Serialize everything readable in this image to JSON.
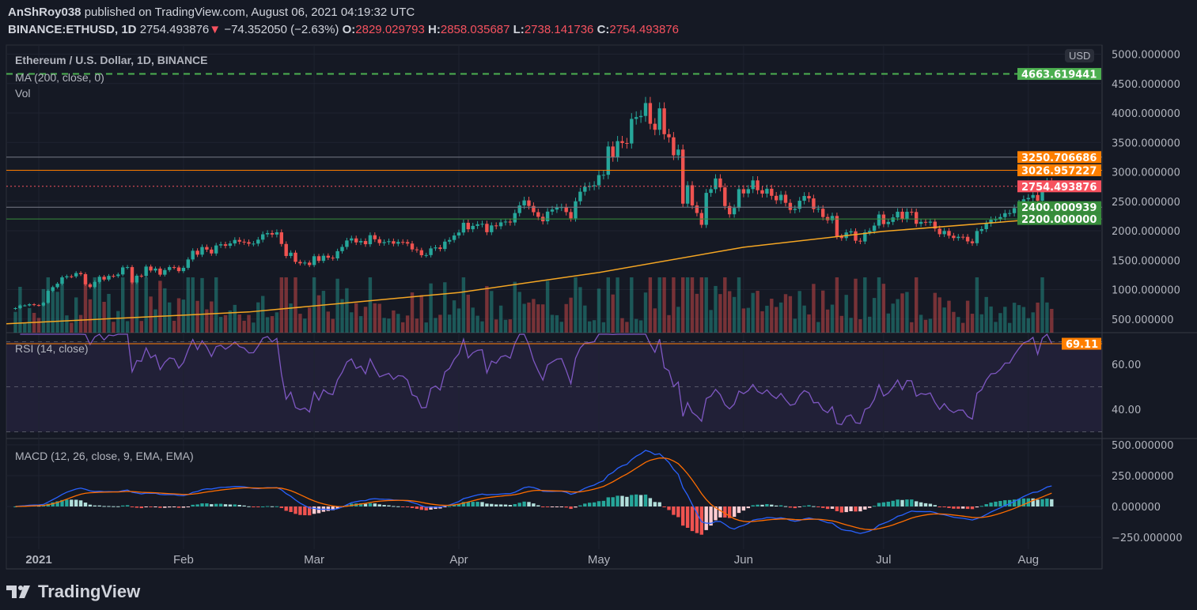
{
  "header": {
    "author": "AnShRoy038",
    "published": " published on TradingView.com, August 06, 2021 04:19:32 UTC",
    "symbol": "BINANCE:ETHUSD, 1D",
    "last": "2754.493876",
    "change": "−74.352050 (−2.63%)",
    "o_label": "O:",
    "o": "2829.029793",
    "h_label": "H:",
    "h": "2858.035687",
    "l_label": "L:",
    "l": "2738.141736",
    "c_label": "C:",
    "c": "2754.493876",
    "down_icon": "triangle-down-icon"
  },
  "legend": {
    "title": "Ethereum / U.S. Dollar, 1D, BINANCE",
    "ma": "MA (200, close, 0)",
    "vol": "Vol",
    "rsi": "RSI (14, close)",
    "macd": "MACD (12, 26, close, 9, EMA, EMA)"
  },
  "currency": "USD",
  "logo": "TradingView",
  "colors": {
    "up": "#26a69a",
    "down": "#ef5350",
    "ma": "#f5a623",
    "rsi": "#7e57c2",
    "macd": "#2962ff",
    "signal": "#ff6d00",
    "background": "#151924"
  },
  "chart_data": {
    "type": "candlestick",
    "symbol": "ETHUSD",
    "candles_from": "2020-12-27",
    "closes": [
      685,
      730,
      731,
      751,
      737,
      730,
      775,
      979,
      1041,
      1100,
      1208,
      1225,
      1224,
      1281,
      1262,
      1090,
      1043,
      1130,
      1218,
      1171,
      1233,
      1230,
      1257,
      1377,
      1382,
      1121,
      1236,
      1231,
      1391,
      1324,
      1357,
      1253,
      1332,
      1382,
      1376,
      1314,
      1370,
      1512,
      1660,
      1593,
      1723,
      1680,
      1614,
      1750,
      1770,
      1744,
      1784,
      1843,
      1814,
      1806,
      1779,
      1781,
      1848,
      1939,
      1960,
      1935,
      1973,
      1775,
      1571,
      1627,
      1471,
      1446,
      1458,
      1417,
      1567,
      1488,
      1575,
      1542,
      1530,
      1653,
      1725,
      1834,
      1870,
      1802,
      1825,
      1771,
      1924,
      1855,
      1790,
      1807,
      1822,
      1780,
      1810,
      1807,
      1782,
      1683,
      1669,
      1584,
      1586,
      1700,
      1716,
      1690,
      1815,
      1843,
      1919,
      1970,
      2135,
      2025,
      2082,
      2110,
      2117,
      1975,
      2090,
      2076,
      2142,
      2155,
      2140,
      2300,
      2430,
      2515,
      2421,
      2315,
      2236,
      2160,
      2325,
      2360,
      2394,
      2400,
      2317,
      2210,
      2500,
      2663,
      2748,
      2757,
      2772,
      2945,
      2950,
      3431,
      3253,
      3522,
      3490,
      3482,
      3900,
      3930,
      3950,
      4169,
      3817,
      3715,
      4079,
      3640,
      3587,
      3282,
      3379,
      2460,
      2772,
      2430,
      2301,
      2100,
      2643,
      2706,
      2888,
      2736,
      2419,
      2279,
      2387,
      2706,
      2634,
      2707,
      2855,
      2688,
      2630,
      2713,
      2593,
      2517,
      2611,
      2474,
      2353,
      2372,
      2510,
      2590,
      2549,
      2368,
      2373,
      2233,
      2178,
      2251,
      1900,
      1875,
      1971,
      1990,
      1830,
      1817,
      1973,
      1996,
      2087,
      2275,
      2113,
      2150,
      2226,
      2323,
      2198,
      2322,
      2318,
      2118,
      2150,
      2137,
      2154,
      2036,
      1941,
      1996,
      1915,
      1876,
      1897,
      1896,
      1819,
      1788,
      1995,
      2027,
      2123,
      2187,
      2192,
      2232,
      2298,
      2299,
      2384,
      2462,
      2534,
      2557,
      2607,
      2510,
      2725,
      2827,
      2754
    ],
    "ma200": [
      [
        "2020-12-27",
        420
      ],
      [
        "2021-02-15",
        620
      ],
      [
        "2021-04-01",
        950
      ],
      [
        "2021-05-01",
        1290
      ],
      [
        "2021-06-01",
        1720
      ],
      [
        "2021-07-01",
        1990
      ],
      [
        "2021-08-06",
        2215
      ]
    ],
    "price_axis": {
      "ticks": [
        "5000.000000",
        "4500.000000",
        "4000.000000",
        "3500.000000",
        "3000.000000",
        "2500.000000",
        "2000.000000",
        "1500.000000",
        "1000.000000",
        "500.000000"
      ],
      "ylim": [
        0,
        5000
      ]
    },
    "rsi_axis": {
      "ticks": [
        "60.00",
        "40.00"
      ],
      "bands": [
        70,
        50,
        30
      ]
    },
    "macd_axis": {
      "ticks": [
        "500.000000",
        "250.000000",
        "0.000000",
        "−250.000000"
      ]
    },
    "time_axis": [
      [
        "2021-01-01",
        "2021"
      ],
      [
        "2021-02-01",
        "Feb"
      ],
      [
        "2021-03-01",
        "Mar"
      ],
      [
        "2021-04-01",
        "Apr"
      ],
      [
        "2021-05-01",
        "May"
      ],
      [
        "2021-06-01",
        "Jun"
      ],
      [
        "2021-07-01",
        "Jul"
      ],
      [
        "2021-08-01",
        "Aug"
      ]
    ],
    "levels": [
      {
        "value": 4663.619441,
        "label": "4663.619441",
        "color": "#4caf50",
        "style": "dashed"
      },
      {
        "value": 3250.706686,
        "label": "3250.706686",
        "color": "#ff7f00",
        "style": "gray"
      },
      {
        "value": 3026.957227,
        "label": "3026.957227",
        "color": "#ff7f00",
        "style": "solid"
      },
      {
        "value": 2754.493876,
        "label": "2754.493876",
        "color": "#f7525f",
        "style": "dotted"
      },
      {
        "value": 2400.000939,
        "label": "2400.000939",
        "color": "#388e3c",
        "style": "gray"
      },
      {
        "value": 2200.0,
        "label": "2200.000000",
        "color": "#388e3c",
        "style": "solid"
      }
    ],
    "rsi_last": {
      "value": 69.11,
      "label": "69.11",
      "color": "#ff7f00"
    }
  }
}
